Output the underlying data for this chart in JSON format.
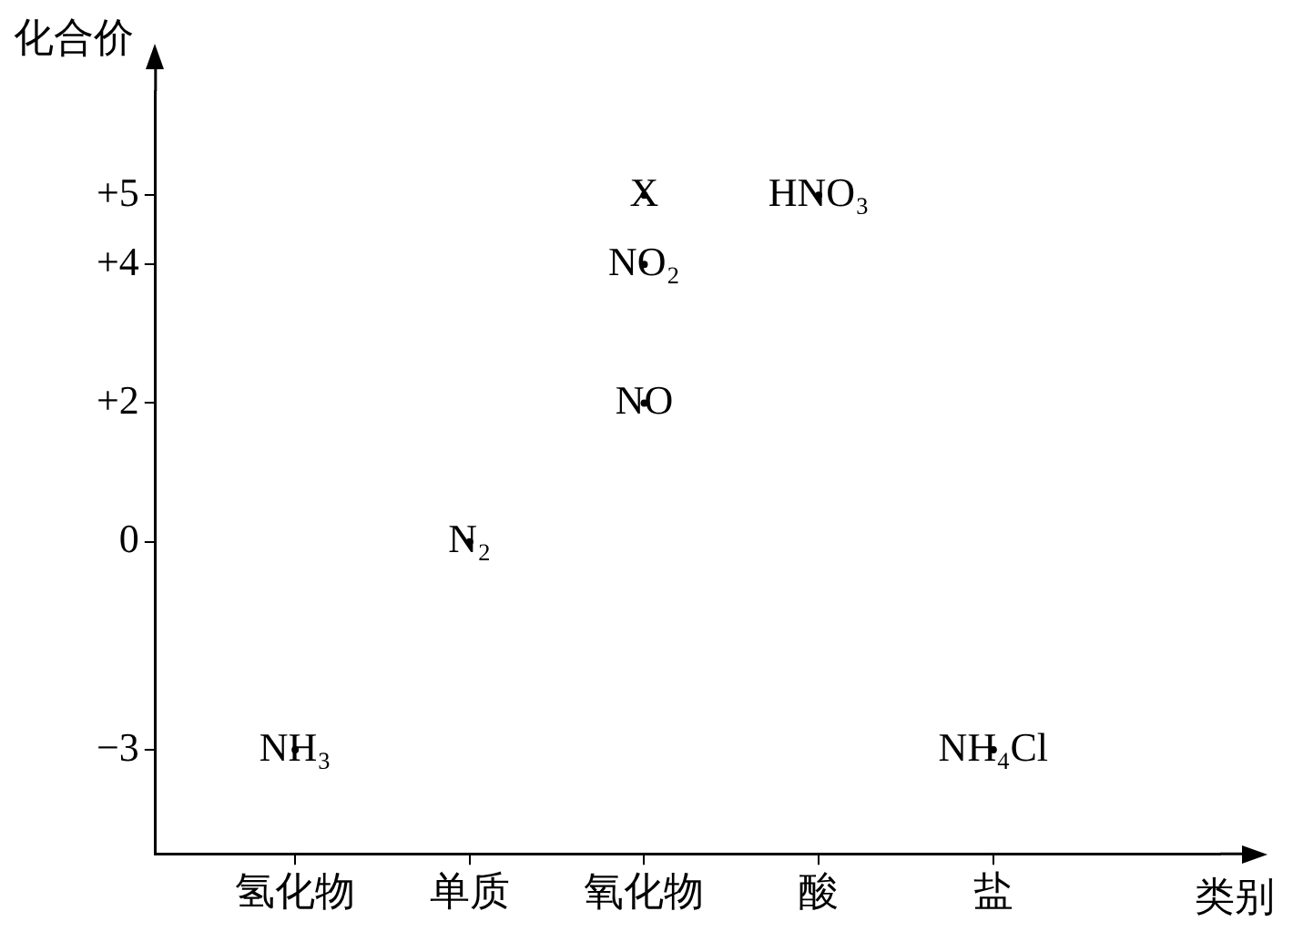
{
  "chart_data": {
    "type": "scatter",
    "xlabel": "类别",
    "ylabel": "化合价",
    "categories": [
      "氢化物",
      "单质",
      "氧化物",
      "酸",
      "盐"
    ],
    "series": [
      {
        "color": "#000000",
        "x": [
          "氢化物",
          "单质",
          "氧化物",
          "氧化物",
          "氧化物",
          "酸",
          "盐"
        ],
        "values": [
          -3,
          0,
          5,
          4,
          2,
          5,
          -3
        ],
        "value_labels": [
          "NH₃",
          "N₂",
          "X",
          "NO₂",
          "NO",
          "HNO₃",
          "NH₄Cl"
        ]
      }
    ],
    "ylim": [
      -4.5,
      6.5
    ],
    "yticks": [
      {
        "value": -3,
        "label": "−3"
      },
      0,
      {
        "value": 2,
        "label": "+2"
      },
      {
        "value": 4,
        "label": "+4"
      },
      {
        "value": 5,
        "label": "+5"
      }
    ],
    "grid": false,
    "legend": false
  }
}
